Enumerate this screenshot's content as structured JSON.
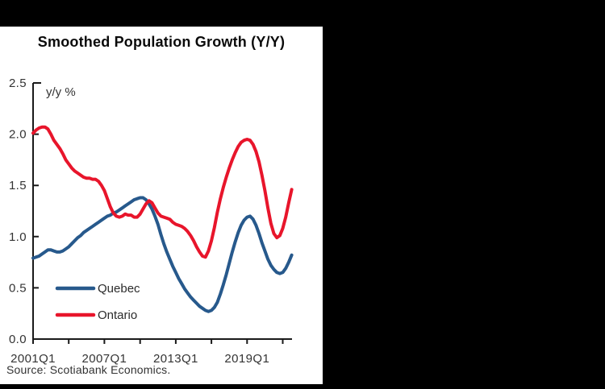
{
  "title": "Smoothed Population Growth (Y/Y)",
  "source": "Source: Scotiabank Economics.",
  "colors": {
    "background": "#000000",
    "panel": "#ffffff",
    "axis": "#1a1a1a",
    "quebec": "#27598c",
    "ontario": "#e8152b"
  },
  "legend": {
    "items": [
      {
        "label": "Quebec",
        "color": "#27598c"
      },
      {
        "label": "Ontario",
        "color": "#e8152b"
      }
    ]
  },
  "chart_data": {
    "type": "line",
    "title": "Smoothed Population Growth (Y/Y)",
    "ylabel": "y/y %",
    "xlabel": "",
    "grid": false,
    "legend_position": "inside-bottom-left",
    "ylim": [
      0.0,
      2.5
    ],
    "y_ticks": [
      0.0,
      0.5,
      1.0,
      1.5,
      2.0,
      2.5
    ],
    "y_tick_labels": [
      "0.0",
      "0.5",
      "1.0",
      "1.5",
      "2.0",
      "2.5"
    ],
    "x_start": "2001Q1",
    "x_end": "2022Q4",
    "x_step": "quarter",
    "x_tick_every_years": 3,
    "x_tick_labels": [
      "2001Q1",
      "2007Q1",
      "2013Q1",
      "2019Q1"
    ],
    "series": [
      {
        "name": "Quebec",
        "color": "#27598c",
        "values": [
          0.79,
          0.8,
          0.81,
          0.83,
          0.85,
          0.87,
          0.87,
          0.86,
          0.85,
          0.85,
          0.86,
          0.88,
          0.9,
          0.93,
          0.96,
          0.99,
          1.01,
          1.04,
          1.06,
          1.08,
          1.1,
          1.12,
          1.14,
          1.16,
          1.18,
          1.2,
          1.21,
          1.23,
          1.24,
          1.26,
          1.28,
          1.3,
          1.32,
          1.34,
          1.36,
          1.37,
          1.38,
          1.38,
          1.36,
          1.32,
          1.27,
          1.2,
          1.12,
          1.02,
          0.93,
          0.85,
          0.78,
          0.71,
          0.65,
          0.59,
          0.54,
          0.49,
          0.45,
          0.41,
          0.38,
          0.35,
          0.32,
          0.3,
          0.28,
          0.27,
          0.28,
          0.31,
          0.36,
          0.44,
          0.53,
          0.63,
          0.74,
          0.85,
          0.95,
          1.04,
          1.11,
          1.16,
          1.19,
          1.2,
          1.17,
          1.11,
          1.03,
          0.94,
          0.86,
          0.78,
          0.72,
          0.68,
          0.65,
          0.64,
          0.65,
          0.69,
          0.75,
          0.82
        ]
      },
      {
        "name": "Ontario",
        "color": "#e8152b",
        "values": [
          2.01,
          2.04,
          2.06,
          2.07,
          2.07,
          2.05,
          2.0,
          1.94,
          1.9,
          1.86,
          1.81,
          1.75,
          1.71,
          1.67,
          1.64,
          1.62,
          1.6,
          1.58,
          1.57,
          1.57,
          1.56,
          1.56,
          1.54,
          1.5,
          1.45,
          1.37,
          1.29,
          1.23,
          1.2,
          1.19,
          1.2,
          1.22,
          1.21,
          1.21,
          1.19,
          1.19,
          1.22,
          1.27,
          1.32,
          1.35,
          1.33,
          1.28,
          1.23,
          1.2,
          1.19,
          1.18,
          1.17,
          1.14,
          1.12,
          1.11,
          1.1,
          1.08,
          1.05,
          1.01,
          0.96,
          0.9,
          0.85,
          0.81,
          0.8,
          0.86,
          0.96,
          1.09,
          1.24,
          1.37,
          1.48,
          1.58,
          1.67,
          1.75,
          1.82,
          1.88,
          1.92,
          1.94,
          1.95,
          1.94,
          1.9,
          1.83,
          1.73,
          1.6,
          1.45,
          1.28,
          1.13,
          1.03,
          0.99,
          1.01,
          1.08,
          1.19,
          1.33,
          1.46
        ]
      }
    ]
  }
}
